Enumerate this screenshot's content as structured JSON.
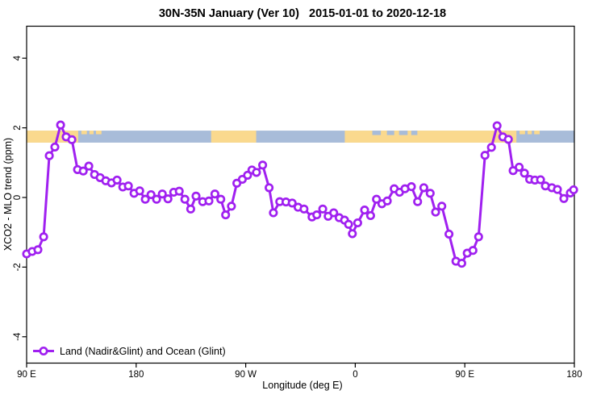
{
  "chart_data": {
    "type": "line",
    "title": "30N-35N January (Ver 10)   2015-01-01 to 2020-12-18",
    "xlabel": "Longitude (deg E)",
    "ylabel": "XCO2 - MLO trend (ppm)",
    "grid": false,
    "xlim_deg_east_offset_from_90E": [
      0,
      450
    ],
    "ylim": [
      -4.8,
      4.9
    ],
    "yticks": [
      -4,
      -2,
      0,
      2,
      4
    ],
    "xticks": [
      {
        "pos": 0,
        "label": "90 E"
      },
      {
        "pos": 90,
        "label": "180"
      },
      {
        "pos": 180,
        "label": "90 W"
      },
      {
        "pos": 270,
        "label": "0"
      },
      {
        "pos": 360,
        "label": "90 E"
      },
      {
        "pos": 450,
        "label": "180"
      }
    ],
    "legend": [
      {
        "label": "Land (Nadir&Glint) and Ocean (Glint)",
        "color": "#A020F0",
        "marker": "open-circle",
        "position": "bottom-left"
      }
    ],
    "colors": {
      "series": "#A020F0",
      "land": "#FAD98E",
      "ocean": "#A8BCD9",
      "axis": "#000000",
      "background": "#FFFFFF"
    },
    "map_strip": {
      "description": "land/ocean band drawn across plot near value 1.75",
      "band_value_top": 1.92,
      "band_value_bottom": 1.575,
      "land_segments_deg": [
        [
          0,
          42.4
        ],
        [
          151.6,
          188.6
        ],
        [
          261.4,
          402.4
        ]
      ],
      "coast_speckles_deg": [
        [
          45,
          49.5
        ],
        [
          51.6,
          55
        ],
        [
          57,
          61.5
        ],
        [
          405,
          409.5
        ],
        [
          411.6,
          415
        ],
        [
          417,
          421.5
        ]
      ],
      "ocean_notches_deg": [
        [
          284,
          291
        ],
        [
          296,
          302
        ],
        [
          306,
          313
        ],
        [
          316,
          321
        ]
      ]
    },
    "series": [
      {
        "name": "Land (Nadir&Glint) and Ocean (Glint)",
        "points": [
          [
            0,
            -1.62
          ],
          [
            4.6,
            -1.55
          ],
          [
            9.3,
            -1.5
          ],
          [
            14,
            -1.13
          ],
          [
            18.6,
            1.2
          ],
          [
            23.2,
            1.45
          ],
          [
            27.9,
            2.08
          ],
          [
            32.5,
            1.74
          ],
          [
            37.2,
            1.66
          ],
          [
            41.8,
            0.8
          ],
          [
            46.5,
            0.76
          ],
          [
            51.1,
            0.9
          ],
          [
            55.8,
            0.66
          ],
          [
            60.4,
            0.57
          ],
          [
            65,
            0.48
          ],
          [
            69.7,
            0.42
          ],
          [
            74.3,
            0.5
          ],
          [
            79,
            0.3
          ],
          [
            83.6,
            0.33
          ],
          [
            88.3,
            0.12
          ],
          [
            92.9,
            0.19
          ],
          [
            97.5,
            -0.05
          ],
          [
            102.2,
            0.08
          ],
          [
            106.8,
            -0.05
          ],
          [
            111.5,
            0.1
          ],
          [
            116.1,
            -0.04
          ],
          [
            120.8,
            0.15
          ],
          [
            125.4,
            0.18
          ],
          [
            130,
            -0.05
          ],
          [
            134.8,
            -0.33
          ],
          [
            139.2,
            0.04
          ],
          [
            144.7,
            -0.12
          ],
          [
            149.8,
            -0.1
          ],
          [
            154.7,
            0.1
          ],
          [
            159.5,
            -0.05
          ],
          [
            163.5,
            -0.5
          ],
          [
            168.3,
            -0.25
          ],
          [
            172.7,
            0.41
          ],
          [
            177.2,
            0.52
          ],
          [
            181.5,
            0.64
          ],
          [
            185.1,
            0.79
          ],
          [
            188.8,
            0.72
          ],
          [
            193.9,
            0.93
          ],
          [
            199.2,
            0.28
          ],
          [
            202.7,
            -0.44
          ],
          [
            208,
            -0.12
          ],
          [
            213.1,
            -0.13
          ],
          [
            218.2,
            -0.16
          ],
          [
            223,
            -0.28
          ],
          [
            227.9,
            -0.33
          ],
          [
            234.5,
            -0.56
          ],
          [
            238.4,
            -0.5
          ],
          [
            243.3,
            -0.33
          ],
          [
            247.7,
            -0.54
          ],
          [
            252.3,
            -0.44
          ],
          [
            256.8,
            -0.58
          ],
          [
            261.2,
            -0.65
          ],
          [
            264.5,
            -0.77
          ],
          [
            267.6,
            -1.04
          ],
          [
            272,
            -0.73
          ],
          [
            277.7,
            -0.36
          ],
          [
            282.6,
            -0.52
          ],
          [
            287.4,
            -0.05
          ],
          [
            291.9,
            -0.18
          ],
          [
            296.3,
            -0.1
          ],
          [
            302,
            0.25
          ],
          [
            306.4,
            0.15
          ],
          [
            310.8,
            0.25
          ],
          [
            316.1,
            0.31
          ],
          [
            321.2,
            -0.12
          ],
          [
            326.3,
            0.28
          ],
          [
            331.6,
            0.12
          ],
          [
            336,
            -0.42
          ],
          [
            341.1,
            -0.25
          ],
          [
            347,
            -1.05
          ],
          [
            352.7,
            -1.83
          ],
          [
            357.5,
            -1.89
          ],
          [
            362,
            -1.6
          ],
          [
            366.7,
            -1.52
          ],
          [
            371.3,
            -1.13
          ],
          [
            376.6,
            1.21
          ],
          [
            381.9,
            1.44
          ],
          [
            386.5,
            2.06
          ],
          [
            391.2,
            1.74
          ],
          [
            395.8,
            1.67
          ],
          [
            399.7,
            0.77
          ],
          [
            404.7,
            0.87
          ],
          [
            409,
            0.7
          ],
          [
            413.3,
            0.52
          ],
          [
            417.6,
            0.5
          ],
          [
            422.2,
            0.51
          ],
          [
            426.2,
            0.33
          ],
          [
            431.5,
            0.28
          ],
          [
            436.1,
            0.23
          ],
          [
            441.4,
            -0.03
          ],
          [
            446.7,
            0.13
          ],
          [
            449.4,
            0.22
          ]
        ]
      }
    ]
  }
}
